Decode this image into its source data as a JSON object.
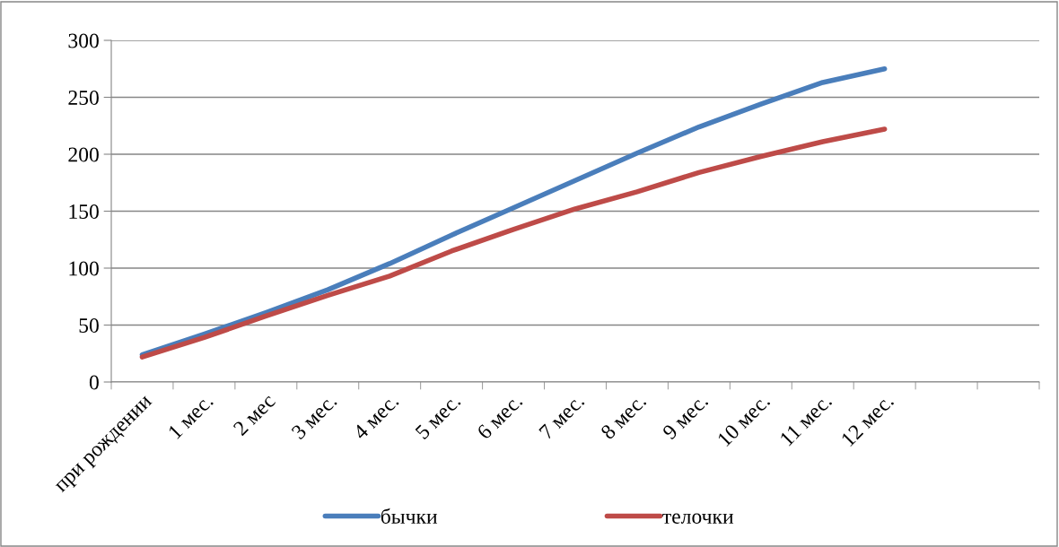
{
  "chart_data": {
    "type": "line",
    "categories": [
      "при рождении",
      "1 мес.",
      "2 мес",
      "3 мес.",
      "4 мес.",
      "5 мес.",
      "6 мес.",
      "7 мес.",
      "8 мес.",
      "9 мес.",
      "10 мес.",
      "11 мес.",
      "12 мес.",
      null,
      null
    ],
    "series": [
      {
        "name": "бычки",
        "color": "#4a7ebb",
        "values": [
          24,
          42,
          61,
          81,
          104,
          129,
          153,
          177,
          201,
          224,
          244,
          263,
          275,
          null,
          null
        ]
      },
      {
        "name": "телочки",
        "color": "#be4b48",
        "values": [
          22,
          39,
          58,
          76,
          93,
          115,
          134,
          152,
          167,
          184,
          198,
          211,
          222,
          null,
          null
        ]
      }
    ],
    "ylim": [
      0,
      300
    ],
    "yticks": [
      0,
      50,
      100,
      150,
      200,
      250,
      300
    ],
    "grid": "y",
    "legend": "bottom",
    "marker": "none",
    "line_style": "solid"
  }
}
